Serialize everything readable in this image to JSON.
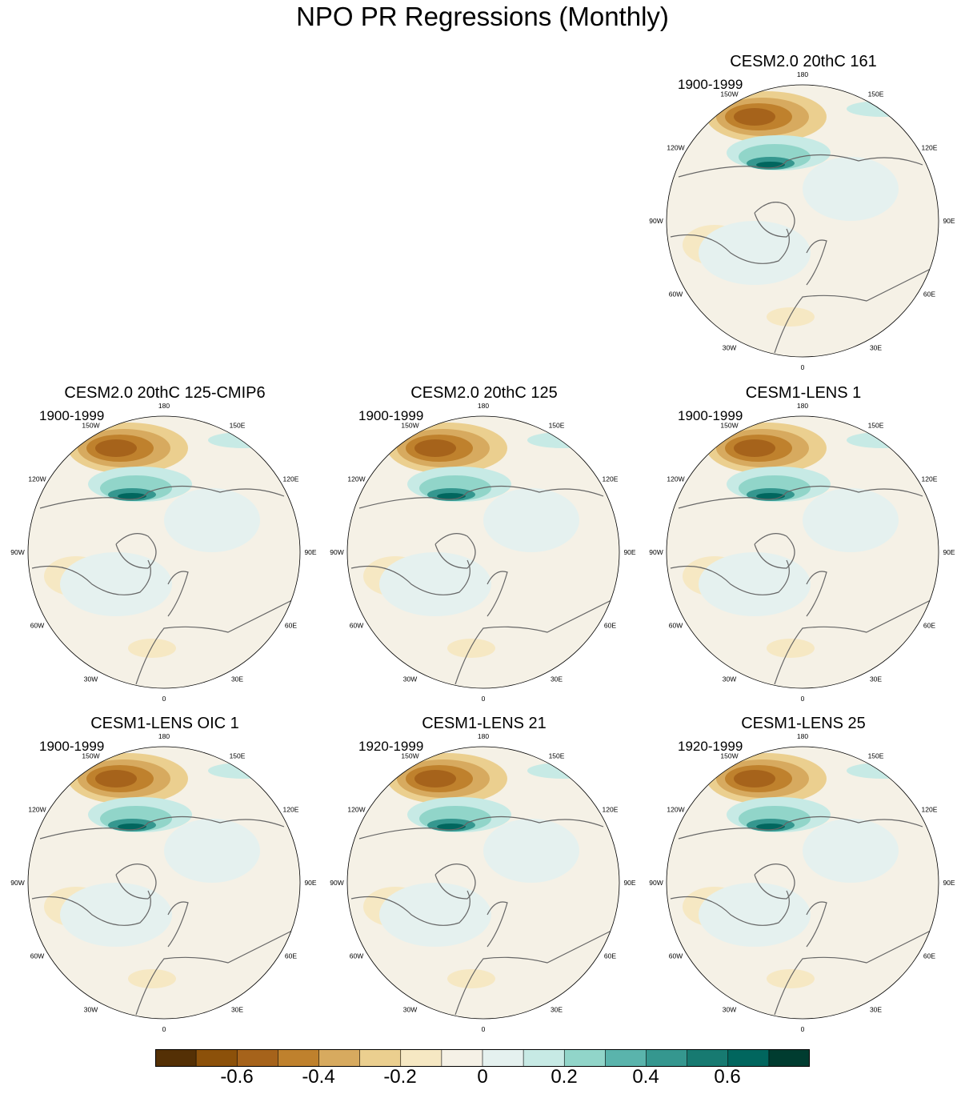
{
  "title": "NPO PR Regressions (Monthly)",
  "panels": [
    {
      "title": "CESM2.0 20thC 161",
      "years": "1900-1999"
    },
    {
      "title": "CESM2.0 20thC 125-CMIP6",
      "years": "1900-1999"
    },
    {
      "title": "CESM2.0 20thC 125",
      "years": "1900-1999"
    },
    {
      "title": "CESM1-LENS 1",
      "years": "1900-1999"
    },
    {
      "title": "CESM1-LENS OIC 1",
      "years": "1900-1999"
    },
    {
      "title": "CESM1-LENS 21",
      "years": "1920-1999"
    },
    {
      "title": "CESM1-LENS 25",
      "years": "1920-1999"
    }
  ],
  "longitude_labels": [
    "180",
    "150E",
    "120E",
    "90E",
    "60E",
    "30E",
    "0",
    "30W",
    "60W",
    "90W",
    "120W",
    "150W"
  ],
  "colorbar": {
    "colors": [
      "#543005",
      "#8c510a",
      "#a6631b",
      "#bf812d",
      "#d7aa5f",
      "#ebcf8f",
      "#f6e8c3",
      "#f5f1e6",
      "#e5f1ef",
      "#c7eae5",
      "#91d5c9",
      "#5ab4ac",
      "#35978f",
      "#177a71",
      "#01665e",
      "#003c30"
    ],
    "tick_labels": [
      "-0.6",
      "-0.4",
      "-0.2",
      "0",
      "0.2",
      "0.4",
      "0.6"
    ]
  }
}
